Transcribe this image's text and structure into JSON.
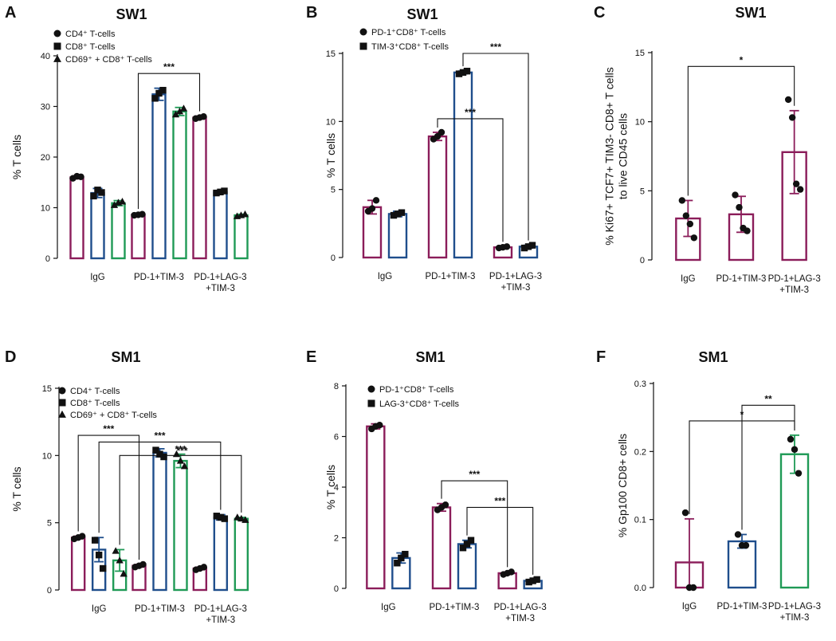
{
  "colors": {
    "pd1_tim3": "#8b1d5a",
    "cd8": "#1f4e8c",
    "cd69": "#1f9a56",
    "axis": "#111111"
  },
  "chart_data": [
    {
      "letter": "A",
      "title": "SW1",
      "type": "bar",
      "ylabel": "% T cells",
      "ylim": [
        0,
        40
      ],
      "yticks": [
        0,
        10,
        20,
        30,
        40
      ],
      "categories": [
        "IgG",
        "PD-1+TIM-3",
        "PD-1+LAG-3\n+TIM-3"
      ],
      "legend": [
        {
          "marker": "circle",
          "label": "CD4⁺ T-cells"
        },
        {
          "marker": "square",
          "label": "CD8⁺ T-cells"
        },
        {
          "marker": "triangle",
          "label": "CD69⁺ + CD8⁺ T-cells"
        }
      ],
      "series": [
        {
          "name": "CD4⁺ T-cells",
          "color": "pd1_tim3",
          "marker": "circle",
          "values": [
            16,
            8.6,
            27.8
          ],
          "errors": [
            0.3,
            0.2,
            0.3
          ],
          "points": [
            [
              15.8,
              16.2,
              16.1
            ],
            [
              8.5,
              8.6,
              8.7
            ],
            [
              27.6,
              27.8,
              28.0
            ]
          ]
        },
        {
          "name": "CD8⁺ T-cells",
          "color": "cd8",
          "marker": "square",
          "values": [
            12.9,
            32.4,
            13.1
          ],
          "errors": [
            0.9,
            1.2,
            0.3
          ],
          "points": [
            [
              12.3,
              13.5,
              13.0
            ],
            [
              31.6,
              32.6,
              33.2
            ],
            [
              12.9,
              13.1,
              13.3
            ]
          ]
        },
        {
          "name": "CD69⁺ + CD8⁺ T-cells",
          "color": "cd69",
          "marker": "triangle",
          "values": [
            10.9,
            29,
            8.5
          ],
          "errors": [
            0.5,
            0.8,
            0.2
          ],
          "points": [
            [
              10.5,
              11.0,
              11.2
            ],
            [
              28.4,
              29.0,
              29.6
            ],
            [
              8.3,
              8.5,
              8.7
            ]
          ]
        }
      ],
      "brackets": [
        {
          "a": [
            1,
            0
          ],
          "b": [
            2,
            0
          ],
          "top": 36.5,
          "label": "***"
        }
      ]
    },
    {
      "letter": "B",
      "title": "SW1",
      "type": "bar",
      "ylabel": "% T cells",
      "ylim": [
        0,
        15
      ],
      "yticks": [
        0,
        5,
        10,
        15
      ],
      "categories": [
        "IgG",
        "PD-1+TIM-3",
        "PD-1+LAG-3\n+TIM-3"
      ],
      "legend": [
        {
          "marker": "circle",
          "label": "PD-1⁺CD8⁺ T-cells"
        },
        {
          "marker": "square",
          "label": "TIM-3⁺CD8⁺ T-cells"
        }
      ],
      "series": [
        {
          "name": "PD-1⁺CD8⁺ T-cells",
          "color": "pd1_tim3",
          "marker": "circle",
          "values": [
            3.7,
            8.9,
            0.75
          ],
          "errors": [
            0.5,
            0.3,
            0.05
          ],
          "points": [
            [
              3.4,
              3.6,
              4.2
            ],
            [
              8.7,
              8.9,
              9.2
            ],
            [
              0.7,
              0.75,
              0.8
            ]
          ]
        },
        {
          "name": "TIM-3⁺CD8⁺ T-cells",
          "color": "cd8",
          "marker": "square",
          "values": [
            3.2,
            13.6,
            0.8
          ],
          "errors": [
            0.2,
            0.1,
            0.1
          ],
          "points": [
            [
              3.1,
              3.2,
              3.3
            ],
            [
              13.5,
              13.6,
              13.7
            ],
            [
              0.7,
              0.8,
              0.9
            ]
          ]
        }
      ],
      "brackets": [
        {
          "a": [
            1,
            1
          ],
          "b": [
            2,
            1
          ],
          "top": 15.0,
          "label": "***"
        },
        {
          "a": [
            1,
            0
          ],
          "b": [
            2,
            0
          ],
          "top": 10.2,
          "label": "***"
        }
      ]
    },
    {
      "letter": "C",
      "title": "SW1",
      "type": "bar",
      "ylabel": "% Ki67+ TCF7+ TIM3- CD8+ T cells\nto live CD45 cells",
      "ylim": [
        0,
        15
      ],
      "yticks": [
        0,
        5,
        10,
        15
      ],
      "categories": [
        "IgG",
        "PD-1+TIM-3",
        "PD-1+LAG-3\n+TIM-3"
      ],
      "legend": [],
      "series": [
        {
          "name": "Ki67+ TCF7+ TIM3-",
          "color": "pd1_tim3",
          "marker": "circle",
          "values": [
            3.0,
            3.3,
            7.8
          ],
          "errors": [
            1.3,
            1.3,
            3.0
          ],
          "points": [
            [
              4.3,
              3.2,
              2.6,
              1.6
            ],
            [
              4.7,
              3.8,
              2.3,
              2.1
            ],
            [
              11.6,
              10.3,
              5.5,
              5.1
            ]
          ]
        }
      ],
      "brackets": [
        {
          "a": [
            0,
            0
          ],
          "b": [
            2,
            0
          ],
          "top": 14.0,
          "label": "*"
        }
      ]
    },
    {
      "letter": "D",
      "title": "SM1",
      "type": "bar",
      "ylabel": "% T cells",
      "ylim": [
        0,
        15
      ],
      "yticks": [
        0,
        5,
        10,
        15
      ],
      "categories": [
        "IgG",
        "PD-1+TIM-3",
        "PD-1+LAG-3\n+TIM-3"
      ],
      "legend": [
        {
          "marker": "circle",
          "label": "CD4⁺ T-cells"
        },
        {
          "marker": "square",
          "label": "CD8⁺ T-cells"
        },
        {
          "marker": "triangle",
          "label": "CD69⁺ + CD8⁺ T-cells"
        }
      ],
      "series": [
        {
          "name": "CD4⁺ T-cells",
          "color": "pd1_tim3",
          "marker": "circle",
          "values": [
            3.9,
            1.8,
            1.6
          ],
          "errors": [
            0.1,
            0.1,
            0.1
          ],
          "points": [
            [
              3.8,
              3.9,
              4.0
            ],
            [
              1.7,
              1.8,
              1.9
            ],
            [
              1.5,
              1.6,
              1.7
            ]
          ]
        },
        {
          "name": "CD8⁺ T-cells",
          "color": "cd8",
          "marker": "square",
          "values": [
            3.0,
            10.2,
            5.4
          ],
          "errors": [
            0.9,
            0.3,
            0.2
          ],
          "points": [
            [
              3.7,
              2.6,
              1.6
            ],
            [
              10.4,
              10.1,
              9.9
            ],
            [
              5.5,
              5.4,
              5.3
            ]
          ]
        },
        {
          "name": "CD69⁺ + CD8⁺ T-cells",
          "color": "cd69",
          "marker": "triangle",
          "values": [
            2.2,
            9.6,
            5.3
          ],
          "errors": [
            0.8,
            0.5,
            0.1
          ],
          "points": [
            [
              2.9,
              2.2,
              1.2
            ],
            [
              10.1,
              9.6,
              9.2
            ],
            [
              5.4,
              5.3,
              5.2
            ]
          ]
        }
      ],
      "brackets": [
        {
          "a": [
            0,
            0
          ],
          "b": [
            1,
            0
          ],
          "top": 11.5,
          "label": "***"
        },
        {
          "a": [
            0,
            1
          ],
          "b": [
            2,
            1
          ],
          "top": 11.0,
          "label": "***"
        },
        {
          "a": [
            0,
            2
          ],
          "b": [
            2,
            2
          ],
          "top": 10.0,
          "label": "***"
        }
      ],
      "bracket_label_mid": "***"
    },
    {
      "letter": "E",
      "title": "SM1",
      "type": "bar",
      "ylabel": "% T cells",
      "ylim": [
        0,
        8
      ],
      "yticks": [
        0,
        2,
        4,
        6,
        8
      ],
      "categories": [
        "IgG",
        "PD-1+TIM-3",
        "PD-1+LAG-3\n+TIM-3"
      ],
      "legend": [
        {
          "marker": "circle",
          "label": "PD-1⁺CD8⁺ T-cells"
        },
        {
          "marker": "square",
          "label": "LAG-3⁺CD8⁺ T-cells"
        }
      ],
      "series": [
        {
          "name": "PD-1⁺CD8⁺ T-cells",
          "color": "pd1_tim3",
          "marker": "circle",
          "values": [
            6.4,
            3.2,
            0.6
          ],
          "errors": [
            0.1,
            0.15,
            0.05
          ],
          "points": [
            [
              6.3,
              6.4,
              6.45
            ],
            [
              3.1,
              3.2,
              3.3
            ],
            [
              0.55,
              0.6,
              0.65
            ]
          ]
        },
        {
          "name": "LAG-3⁺CD8⁺ T-cells",
          "color": "cd8",
          "marker": "square",
          "values": [
            1.2,
            1.75,
            0.3
          ],
          "errors": [
            0.2,
            0.15,
            0.05
          ],
          "points": [
            [
              1.0,
              1.2,
              1.35
            ],
            [
              1.6,
              1.75,
              1.9
            ],
            [
              0.25,
              0.3,
              0.35
            ]
          ]
        }
      ],
      "brackets": [
        {
          "a": [
            1,
            0
          ],
          "b": [
            2,
            0
          ],
          "top": 4.25,
          "label": "***"
        },
        {
          "a": [
            1,
            1
          ],
          "b": [
            2,
            1
          ],
          "top": 3.2,
          "label": "***"
        }
      ]
    },
    {
      "letter": "F",
      "title": "SM1",
      "type": "bar",
      "ylabel": "% Gp100 CD8+ cells",
      "ylim": [
        0,
        0.3
      ],
      "yticks": [
        0.0,
        0.1,
        0.2,
        0.3
      ],
      "ytick_labels": [
        "0.0",
        "0.1",
        "0.2",
        "0.3"
      ],
      "categories": [
        "IgG",
        "PD-1+TIM-3",
        "PD-1+LAG-3\n+TIM-3"
      ],
      "legend": [],
      "series": [
        {
          "name": "Gp100 CD8+",
          "colors": [
            "pd1_tim3",
            "cd8",
            "cd69"
          ],
          "marker": "circle",
          "values": [
            0.037,
            0.068,
            0.196
          ],
          "errors": [
            0.064,
            0.01,
            0.028
          ],
          "points": [
            [
              0.11,
              0.0,
              0.0
            ],
            [
              0.078,
              0.062,
              0.062
            ],
            [
              0.218,
              0.203,
              0.168
            ]
          ]
        }
      ],
      "brackets": [
        {
          "a": [
            1,
            0
          ],
          "b": [
            2,
            0
          ],
          "top": 0.268,
          "label": "**"
        },
        {
          "a": [
            0,
            0
          ],
          "b": [
            2,
            0
          ],
          "top": 0.245,
          "label": "*"
        }
      ]
    }
  ]
}
